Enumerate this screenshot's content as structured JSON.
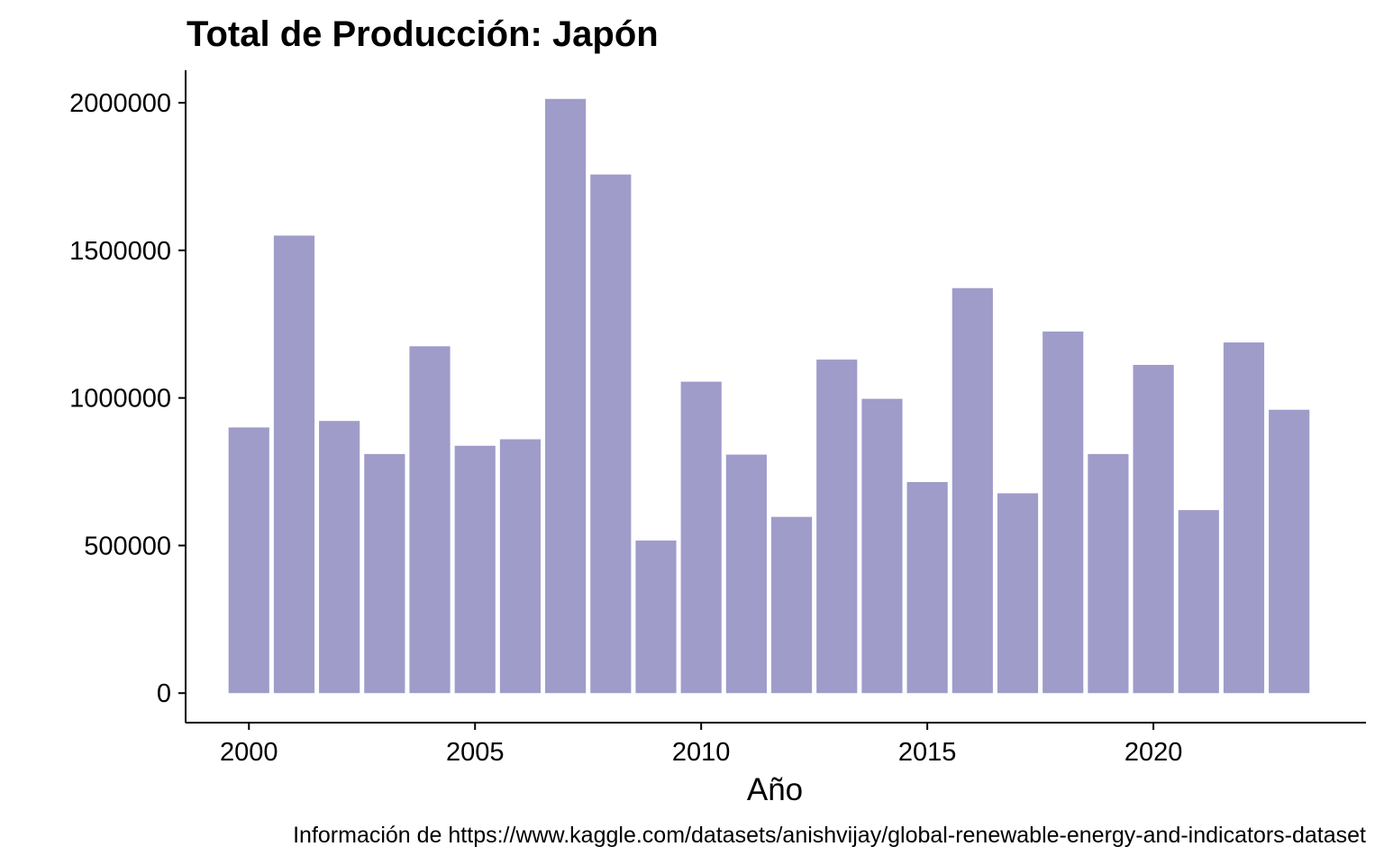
{
  "chart_data": {
    "type": "bar",
    "title": "Total de Producción: Japón",
    "xlabel": "Año",
    "ylabel": "",
    "caption": "Información de https://www.kaggle.com/datasets/anishvijay/global-renewable-energy-and-indicators-dataset",
    "x": [
      2000,
      2001,
      2002,
      2003,
      2004,
      2005,
      2006,
      2007,
      2008,
      2009,
      2010,
      2011,
      2012,
      2013,
      2014,
      2015,
      2016,
      2017,
      2018,
      2019,
      2020,
      2021,
      2022,
      2023
    ],
    "values": [
      900000,
      1550000,
      922000,
      810000,
      1175000,
      838000,
      860000,
      2013000,
      1757000,
      517000,
      1055000,
      808000,
      597000,
      1130000,
      997000,
      715000,
      1372000,
      677000,
      1225000,
      810000,
      1112000,
      620000,
      1188000,
      960000
    ],
    "x_ticks": [
      2000,
      2005,
      2010,
      2015,
      2020
    ],
    "y_ticks": [
      0,
      500000,
      1000000,
      1500000,
      2000000
    ],
    "ylim": [
      -100000,
      2110000
    ],
    "xlim": [
      1998.6,
      2024.7
    ],
    "bar_color": "#9f9cca",
    "grid": false,
    "legend": "none"
  }
}
